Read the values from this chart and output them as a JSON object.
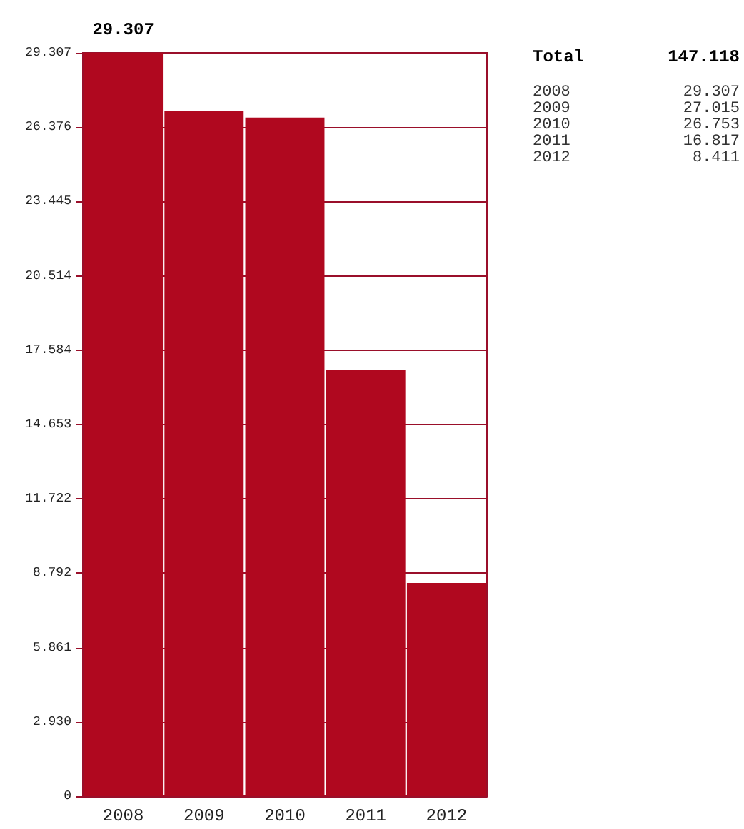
{
  "chart_data": {
    "type": "bar",
    "categories": [
      "2008",
      "2009",
      "2010",
      "2011",
      "2012"
    ],
    "values": [
      29.307,
      27.015,
      26.753,
      16.817,
      8.411
    ],
    "color": "#b0081f",
    "ylim": [
      0,
      29.307
    ],
    "yticks": [
      0,
      {
        "value": 2.93,
        "label": "2.930"
      },
      5.861,
      8.792,
      11.722,
      14.653,
      17.584,
      20.514,
      23.445,
      26.376,
      29.307
    ],
    "grid": "y",
    "value_labels": [
      "29.307",
      null,
      null,
      null,
      null
    ],
    "annotations": [
      "Total",
      "147.118",
      "2008",
      "29.307",
      "2009",
      "27.015",
      "2010",
      "26.753",
      "2011",
      "16.817",
      "2012",
      "8.411"
    ]
  }
}
